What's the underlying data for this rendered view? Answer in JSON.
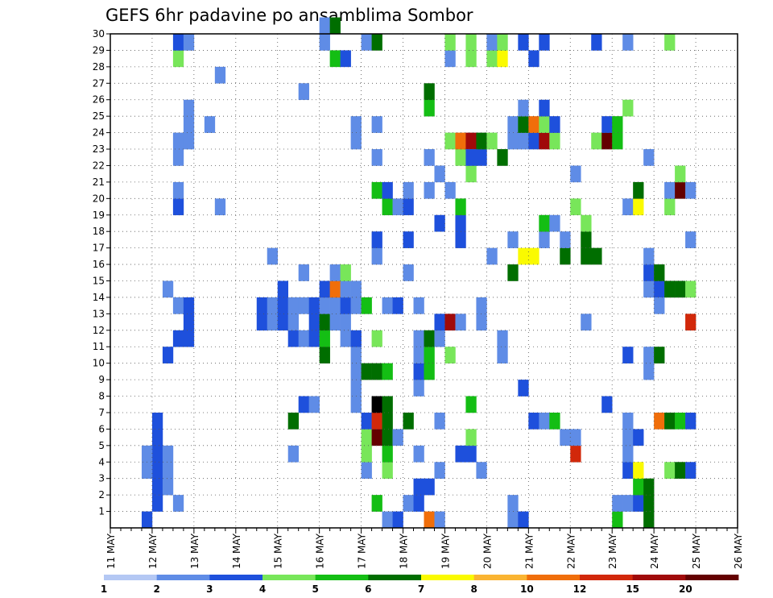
{
  "chart_data": {
    "type": "heatmap",
    "title": "GEFS 6hr padavine po ansamblima Sombor",
    "y": {
      "min": 0,
      "max": 30,
      "ticks": [
        1,
        2,
        3,
        4,
        5,
        6,
        7,
        8,
        9,
        10,
        11,
        12,
        13,
        14,
        15,
        16,
        17,
        18,
        19,
        20,
        21,
        22,
        23,
        24,
        25,
        26,
        27,
        28,
        29,
        30
      ]
    },
    "x": {
      "min": 0,
      "max": 60,
      "unit": "6h steps from 11 MAY 00Z",
      "day_labels": [
        "11 MAY",
        "12 MAY",
        "13 MAY",
        "14 MAY",
        "15 MAY",
        "16 MAY",
        "17 MAY",
        "18 MAY",
        "19 MAY",
        "20 MAY",
        "21 MAY",
        "22 MAY",
        "23 MAY",
        "24 MAY",
        "25 MAY",
        "26 MAY"
      ]
    },
    "grid": true,
    "colorbar": {
      "labels": [
        "1",
        "2",
        "3",
        "4",
        "5",
        "6",
        "7",
        "8",
        "10",
        "12",
        "15",
        "20"
      ],
      "colors": [
        "#b4c8f4",
        "#5f8ce6",
        "#1e50dc",
        "#78e65a",
        "#14be14",
        "#006e00",
        "#fafa00",
        "#fab432",
        "#f06e0a",
        "#d2280a",
        "#a00a0a",
        "#640000"
      ]
    },
    "cells": [
      [
        3,
        0,
        2
      ],
      [
        4,
        1,
        2
      ],
      [
        4,
        2,
        2
      ],
      [
        4,
        3,
        2
      ],
      [
        4,
        4,
        2
      ],
      [
        4,
        5,
        2
      ],
      [
        4,
        6,
        2
      ],
      [
        3,
        3,
        1
      ],
      [
        3,
        4,
        1
      ],
      [
        5,
        2,
        1
      ],
      [
        5,
        3,
        1
      ],
      [
        5,
        4,
        1
      ],
      [
        5,
        10,
        2
      ],
      [
        5,
        14,
        1
      ],
      [
        6,
        1,
        1
      ],
      [
        6,
        11,
        2
      ],
      [
        6,
        13,
        1
      ],
      [
        6,
        19,
        2
      ],
      [
        6,
        20,
        1
      ],
      [
        6,
        22,
        1
      ],
      [
        6,
        23,
        1
      ],
      [
        6,
        28,
        3
      ],
      [
        6,
        29,
        2
      ],
      [
        7,
        11,
        2
      ],
      [
        7,
        12,
        2
      ],
      [
        7,
        13,
        2
      ],
      [
        7,
        23,
        1
      ],
      [
        7,
        24,
        1
      ],
      [
        7,
        25,
        1
      ],
      [
        7,
        29,
        1
      ],
      [
        9,
        24,
        1
      ],
      [
        10,
        19,
        1
      ],
      [
        10,
        27,
        1
      ],
      [
        14,
        13,
        2
      ],
      [
        14,
        12,
        2
      ],
      [
        15,
        12,
        1
      ],
      [
        15,
        13,
        1
      ],
      [
        15,
        16,
        1
      ],
      [
        16,
        12,
        2
      ],
      [
        16,
        13,
        2
      ],
      [
        16,
        14,
        2
      ],
      [
        17,
        4,
        1
      ],
      [
        17,
        6,
        5
      ],
      [
        17,
        11,
        2
      ],
      [
        17,
        12,
        1
      ],
      [
        17,
        13,
        1
      ],
      [
        18,
        7,
        2
      ],
      [
        18,
        11,
        1
      ],
      [
        18,
        13,
        1
      ],
      [
        18,
        15,
        1
      ],
      [
        18,
        26,
        1
      ],
      [
        19,
        7,
        1
      ],
      [
        19,
        11,
        2
      ],
      [
        19,
        12,
        2
      ],
      [
        19,
        13,
        2
      ],
      [
        20,
        10,
        5
      ],
      [
        20,
        11,
        4
      ],
      [
        20,
        12,
        5
      ],
      [
        20,
        13,
        1
      ],
      [
        20,
        14,
        2
      ],
      [
        20,
        30,
        1
      ],
      [
        20,
        29,
        1
      ],
      [
        21,
        12,
        1
      ],
      [
        21,
        13,
        1
      ],
      [
        21,
        14,
        8
      ],
      [
        21,
        15,
        1
      ],
      [
        21,
        28,
        4
      ],
      [
        21,
        30,
        5
      ],
      [
        22,
        11,
        1
      ],
      [
        22,
        12,
        1
      ],
      [
        22,
        13,
        2
      ],
      [
        22,
        14,
        1
      ],
      [
        22,
        15,
        3
      ],
      [
        22,
        28,
        2
      ],
      [
        23,
        7,
        1
      ],
      [
        23,
        8,
        1
      ],
      [
        23,
        9,
        1
      ],
      [
        23,
        10,
        1
      ],
      [
        23,
        11,
        2
      ],
      [
        23,
        13,
        1
      ],
      [
        23,
        14,
        1
      ],
      [
        23,
        23,
        1
      ],
      [
        23,
        24,
        1
      ],
      [
        24,
        3,
        1
      ],
      [
        24,
        4,
        3
      ],
      [
        24,
        5,
        3
      ],
      [
        24,
        6,
        2
      ],
      [
        24,
        13,
        4
      ],
      [
        24,
        9,
        5
      ],
      [
        24,
        29,
        1
      ],
      [
        25,
        5,
        11
      ],
      [
        25,
        6,
        9
      ],
      [
        25,
        7,
        12
      ],
      [
        25,
        1,
        4
      ],
      [
        25,
        9,
        5
      ],
      [
        25,
        11,
        3
      ],
      [
        25,
        16,
        1
      ],
      [
        25,
        17,
        2
      ],
      [
        25,
        20,
        4
      ],
      [
        25,
        22,
        1
      ],
      [
        25,
        24,
        1
      ],
      [
        25,
        29,
        5
      ],
      [
        26,
        0,
        1
      ],
      [
        26,
        3,
        3
      ],
      [
        26,
        4,
        4
      ],
      [
        26,
        5,
        5
      ],
      [
        26,
        6,
        5
      ],
      [
        26,
        7,
        5
      ],
      [
        26,
        9,
        4
      ],
      [
        26,
        13,
        1
      ],
      [
        26,
        19,
        4
      ],
      [
        26,
        20,
        2
      ],
      [
        27,
        0,
        2
      ],
      [
        27,
        5,
        1
      ],
      [
        27,
        13,
        2
      ],
      [
        27,
        19,
        1
      ],
      [
        28,
        1,
        1
      ],
      [
        28,
        6,
        5
      ],
      [
        28,
        15,
        1
      ],
      [
        28,
        17,
        2
      ],
      [
        28,
        19,
        2
      ],
      [
        28,
        20,
        1
      ],
      [
        29,
        1,
        2
      ],
      [
        29,
        2,
        2
      ],
      [
        29,
        4,
        1
      ],
      [
        29,
        8,
        1
      ],
      [
        29,
        9,
        2
      ],
      [
        29,
        13,
        1
      ],
      [
        29,
        10,
        1
      ],
      [
        29,
        11,
        1
      ],
      [
        30,
        0,
        8
      ],
      [
        30,
        2,
        2
      ],
      [
        30,
        9,
        4
      ],
      [
        30,
        10,
        4
      ],
      [
        30,
        11,
        5
      ],
      [
        30,
        20,
        1
      ],
      [
        30,
        22,
        1
      ],
      [
        30,
        25,
        4
      ],
      [
        30,
        26,
        5
      ],
      [
        31,
        0,
        1
      ],
      [
        31,
        3,
        1
      ],
      [
        31,
        6,
        1
      ],
      [
        31,
        11,
        1
      ],
      [
        31,
        12,
        2
      ],
      [
        31,
        18,
        2
      ],
      [
        31,
        21,
        1
      ],
      [
        32,
        10,
        3
      ],
      [
        32,
        12,
        10
      ],
      [
        32,
        20,
        1
      ],
      [
        32,
        23,
        3
      ],
      [
        32,
        28,
        1
      ],
      [
        32,
        29,
        3
      ],
      [
        33,
        4,
        2
      ],
      [
        33,
        17,
        2
      ],
      [
        33,
        18,
        2
      ],
      [
        33,
        19,
        4
      ],
      [
        33,
        12,
        1
      ],
      [
        33,
        22,
        3
      ],
      [
        33,
        23,
        8
      ],
      [
        34,
        4,
        2
      ],
      [
        34,
        5,
        3
      ],
      [
        34,
        7,
        4
      ],
      [
        34,
        23,
        10
      ],
      [
        34,
        21,
        3
      ],
      [
        34,
        22,
        2
      ],
      [
        34,
        28,
        3
      ],
      [
        34,
        29,
        3
      ],
      [
        35,
        3,
        1
      ],
      [
        35,
        12,
        1
      ],
      [
        35,
        13,
        1
      ],
      [
        35,
        22,
        2
      ],
      [
        35,
        23,
        5
      ],
      [
        36,
        16,
        1
      ],
      [
        36,
        23,
        3
      ],
      [
        36,
        28,
        3
      ],
      [
        36,
        29,
        1
      ],
      [
        37,
        10,
        1
      ],
      [
        37,
        11,
        1
      ],
      [
        37,
        22,
        5
      ],
      [
        37,
        28,
        6
      ],
      [
        37,
        29,
        3
      ],
      [
        38,
        0,
        1
      ],
      [
        38,
        1,
        1
      ],
      [
        38,
        15,
        5
      ],
      [
        38,
        17,
        1
      ],
      [
        38,
        23,
        1
      ],
      [
        38,
        24,
        1
      ],
      [
        39,
        0,
        2
      ],
      [
        39,
        8,
        2
      ],
      [
        39,
        16,
        6
      ],
      [
        39,
        23,
        1
      ],
      [
        39,
        24,
        5
      ],
      [
        39,
        25,
        1
      ],
      [
        39,
        29,
        2
      ],
      [
        40,
        6,
        2
      ],
      [
        40,
        16,
        6
      ],
      [
        40,
        23,
        2
      ],
      [
        40,
        24,
        8
      ],
      [
        40,
        28,
        2
      ],
      [
        41,
        6,
        1
      ],
      [
        41,
        17,
        1
      ],
      [
        41,
        18,
        4
      ],
      [
        41,
        23,
        10
      ],
      [
        41,
        24,
        3
      ],
      [
        41,
        25,
        2
      ],
      [
        41,
        29,
        2
      ],
      [
        42,
        6,
        4
      ],
      [
        42,
        18,
        1
      ],
      [
        42,
        23,
        3
      ],
      [
        42,
        24,
        2
      ],
      [
        43,
        5,
        1
      ],
      [
        43,
        16,
        5
      ],
      [
        43,
        17,
        1
      ],
      [
        44,
        4,
        9
      ],
      [
        44,
        5,
        1
      ],
      [
        44,
        19,
        3
      ],
      [
        44,
        21,
        1
      ],
      [
        45,
        12,
        1
      ],
      [
        45,
        17,
        5
      ],
      [
        45,
        18,
        3
      ],
      [
        45,
        16,
        5
      ],
      [
        46,
        16,
        5
      ],
      [
        46,
        23,
        3
      ],
      [
        46,
        29,
        2
      ],
      [
        47,
        7,
        2
      ],
      [
        47,
        23,
        11
      ],
      [
        47,
        24,
        2
      ],
      [
        48,
        0,
        4
      ],
      [
        48,
        1,
        1
      ],
      [
        48,
        23,
        4
      ],
      [
        48,
        24,
        4
      ],
      [
        49,
        1,
        1
      ],
      [
        49,
        3,
        2
      ],
      [
        49,
        4,
        1
      ],
      [
        49,
        5,
        1
      ],
      [
        49,
        6,
        1
      ],
      [
        49,
        10,
        2
      ],
      [
        49,
        19,
        1
      ],
      [
        49,
        25,
        3
      ],
      [
        49,
        29,
        1
      ],
      [
        50,
        1,
        2
      ],
      [
        50,
        2,
        4
      ],
      [
        50,
        3,
        6
      ],
      [
        50,
        5,
        2
      ],
      [
        50,
        19,
        6
      ],
      [
        50,
        20,
        5
      ],
      [
        51,
        1,
        5
      ],
      [
        51,
        2,
        5
      ],
      [
        51,
        0,
        5
      ],
      [
        51,
        9,
        1
      ],
      [
        51,
        10,
        1
      ],
      [
        51,
        14,
        1
      ],
      [
        51,
        15,
        2
      ],
      [
        51,
        16,
        1
      ],
      [
        51,
        22,
        1
      ],
      [
        52,
        6,
        8
      ],
      [
        52,
        10,
        5
      ],
      [
        52,
        14,
        2
      ],
      [
        52,
        15,
        5
      ],
      [
        52,
        13,
        1
      ],
      [
        53,
        6,
        5
      ],
      [
        53,
        19,
        3
      ],
      [
        53,
        14,
        5
      ],
      [
        53,
        20,
        1
      ],
      [
        53,
        29,
        3
      ],
      [
        53,
        3,
        3
      ],
      [
        54,
        6,
        4
      ],
      [
        54,
        14,
        5
      ],
      [
        54,
        3,
        5
      ],
      [
        54,
        20,
        11
      ],
      [
        54,
        21,
        3
      ],
      [
        55,
        6,
        2
      ],
      [
        55,
        14,
        3
      ],
      [
        55,
        3,
        2
      ],
      [
        55,
        12,
        9
      ],
      [
        55,
        17,
        1
      ],
      [
        55,
        20,
        1
      ]
    ]
  }
}
